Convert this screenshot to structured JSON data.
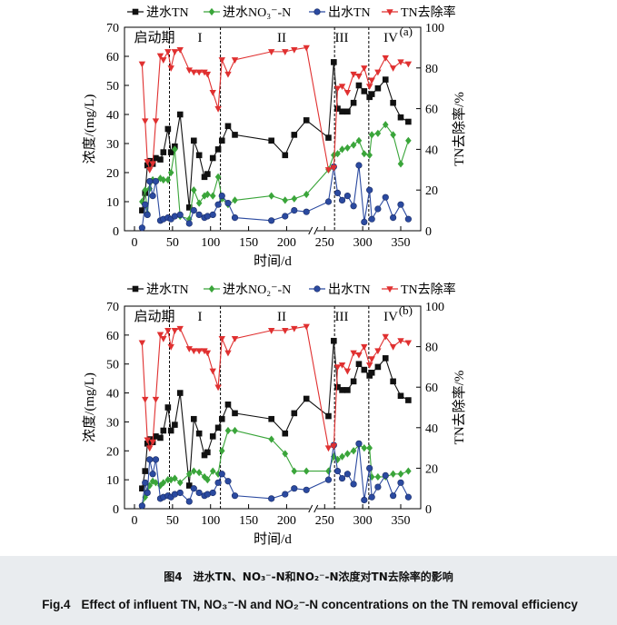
{
  "chart_data": [
    {
      "type": "line",
      "panel_label": "(a)",
      "legend": [
        "进水TN",
        "进水NO₃⁻-N",
        "出水TN",
        "TN去除率"
      ],
      "xlabel": "时间/d",
      "ylabel": "浓度/(mg/L)",
      "ylabel_right": "TN去除率/%",
      "xlim": [
        0,
        370
      ],
      "ylim": [
        0,
        70
      ],
      "ylim_right": [
        0,
        100
      ],
      "x_ticks": [
        "0",
        "50",
        "100",
        "150",
        "200",
        "250",
        "300",
        "350"
      ],
      "y_ticks": [
        "0",
        "10",
        "20",
        "30",
        "40",
        "50",
        "60",
        "70"
      ],
      "y2_ticks": [
        "0",
        "20",
        "40",
        "60",
        "80",
        "100"
      ],
      "phases": [
        "启动期",
        "I",
        "II",
        "III",
        "IV"
      ],
      "phase_boundaries": [
        46,
        113,
        263,
        308
      ],
      "axis_break": 235,
      "series": [
        {
          "name": "进水TN",
          "color": "#111111",
          "marker": "square",
          "axis": "left",
          "x": [
            10,
            14,
            17,
            20,
            24,
            28,
            34,
            38,
            44,
            48,
            53,
            60,
            72,
            78,
            85,
            92,
            96,
            103,
            110,
            115,
            123,
            132,
            180,
            198,
            210,
            226,
            255,
            262,
            267,
            273,
            280,
            288,
            295,
            302,
            309,
            312,
            320,
            330,
            340,
            350,
            360
          ],
          "y": [
            7,
            13,
            22.5,
            24,
            23,
            25,
            24.5,
            27,
            35,
            27,
            29,
            40,
            8,
            31,
            26,
            18.5,
            19.5,
            25,
            28,
            31,
            36,
            33,
            31,
            26,
            33,
            38,
            32,
            58,
            42,
            41,
            41,
            44,
            50,
            48,
            46,
            47,
            49,
            52,
            44,
            39,
            37.5
          ]
        },
        {
          "name": "进水NO₃⁻-N",
          "color": "#3aa53a",
          "marker": "diamond",
          "axis": "left",
          "x": [
            10,
            14,
            17,
            20,
            24,
            28,
            34,
            38,
            44,
            48,
            53,
            60,
            72,
            78,
            85,
            92,
            96,
            103,
            110,
            115,
            123,
            132,
            180,
            198,
            210,
            226,
            255,
            262,
            267,
            273,
            280,
            288,
            295,
            302,
            309,
            312,
            320,
            330,
            340,
            350,
            360
          ],
          "y": [
            10,
            14,
            6,
            14.5,
            17.5,
            17,
            18,
            17.5,
            17.5,
            20,
            28,
            5,
            4,
            14,
            9.5,
            12,
            12.5,
            12,
            18.5,
            11,
            9,
            10.5,
            12,
            10.5,
            11,
            12.5,
            21,
            26,
            26.5,
            28,
            28.5,
            29.5,
            31,
            26.5,
            26,
            33,
            33.5,
            36.5,
            33,
            23,
            31
          ]
        },
        {
          "name": "出水TN",
          "color": "#2b4aa0",
          "marker": "circle",
          "axis": "left",
          "x": [
            10,
            14,
            17,
            20,
            24,
            28,
            34,
            38,
            44,
            48,
            53,
            60,
            72,
            78,
            85,
            92,
            96,
            103,
            110,
            115,
            123,
            132,
            180,
            198,
            210,
            226,
            255,
            262,
            267,
            273,
            280,
            288,
            295,
            302,
            309,
            312,
            320,
            330,
            340,
            350,
            360
          ],
          "y": [
            1,
            9,
            5.5,
            17,
            12,
            17,
            3.5,
            4,
            4.5,
            4,
            5,
            5.5,
            2.5,
            7,
            5.5,
            4.5,
            5,
            5.5,
            9,
            12,
            9.5,
            4.5,
            3.5,
            5,
            7,
            6.5,
            10,
            22,
            13,
            10.5,
            12,
            8.5,
            22.5,
            3,
            14,
            4,
            7.5,
            11.5,
            4.5,
            9,
            4
          ]
        },
        {
          "name": "TN去除率",
          "color": "#e03030",
          "marker": "triangle-down",
          "axis": "right",
          "x": [
            10,
            14,
            17,
            20,
            24,
            28,
            34,
            38,
            44,
            48,
            53,
            60,
            72,
            78,
            85,
            92,
            96,
            103,
            110,
            115,
            123,
            132,
            180,
            198,
            210,
            226,
            255,
            262,
            267,
            273,
            280,
            288,
            295,
            302,
            309,
            312,
            320,
            330,
            340,
            350,
            360
          ],
          "y": [
            82,
            54,
            34,
            30,
            33,
            54,
            86,
            84,
            88,
            80,
            88,
            89,
            79,
            78,
            78,
            78,
            77,
            68,
            60,
            84,
            77,
            84,
            88,
            88,
            89,
            90,
            30,
            31,
            70,
            71,
            68,
            77,
            76,
            80,
            71,
            74,
            78,
            85,
            80,
            83,
            82
          ]
        }
      ]
    },
    {
      "type": "line",
      "panel_label": "(b)",
      "legend": [
        "进水TN",
        "进水NO₂⁻-N",
        "出水TN",
        "TN去除率"
      ],
      "xlabel": "时间/d",
      "ylabel": "浓度/(mg/L)",
      "ylabel_right": "TN去除率/%",
      "xlim": [
        0,
        370
      ],
      "ylim": [
        0,
        70
      ],
      "ylim_right": [
        0,
        100
      ],
      "x_ticks": [
        "0",
        "50",
        "100",
        "150",
        "200",
        "250",
        "300",
        "350"
      ],
      "y_ticks": [
        "0",
        "10",
        "20",
        "30",
        "40",
        "50",
        "60",
        "70"
      ],
      "y2_ticks": [
        "0",
        "20",
        "40",
        "60",
        "80",
        "100"
      ],
      "phases": [
        "启动期",
        "I",
        "II",
        "III",
        "IV"
      ],
      "phase_boundaries": [
        46,
        113,
        263,
        308
      ],
      "axis_break": 235,
      "series": [
        {
          "name": "进水TN",
          "color": "#111111",
          "marker": "square",
          "axis": "left",
          "x": [
            10,
            14,
            17,
            20,
            24,
            28,
            34,
            38,
            44,
            48,
            53,
            60,
            72,
            78,
            85,
            92,
            96,
            103,
            110,
            115,
            123,
            132,
            180,
            198,
            210,
            226,
            255,
            262,
            267,
            273,
            280,
            288,
            295,
            302,
            309,
            312,
            320,
            330,
            340,
            350,
            360
          ],
          "y": [
            7,
            13,
            22.5,
            24,
            23,
            25,
            24.5,
            27,
            35,
            27,
            29,
            40,
            8,
            31,
            26,
            18.5,
            19.5,
            25,
            28,
            31,
            36,
            33,
            31,
            26,
            33,
            38,
            32,
            58,
            42,
            41,
            41,
            44,
            50,
            48,
            46,
            47,
            49,
            52,
            44,
            39,
            37.5
          ]
        },
        {
          "name": "进水NO₂⁻-N",
          "color": "#3aa53a",
          "marker": "diamond",
          "axis": "left",
          "x": [
            10,
            14,
            17,
            20,
            24,
            28,
            34,
            38,
            44,
            48,
            53,
            60,
            72,
            78,
            85,
            92,
            96,
            103,
            110,
            115,
            123,
            132,
            180,
            198,
            210,
            226,
            255,
            262,
            267,
            273,
            280,
            288,
            295,
            302,
            309,
            312,
            320,
            330,
            340,
            350,
            360
          ],
          "y": [
            1,
            4,
            6,
            8,
            9.5,
            9,
            8,
            9,
            10,
            10,
            10.5,
            9,
            12,
            13,
            12.5,
            11,
            10,
            13,
            12,
            20,
            27,
            27,
            24,
            19,
            13,
            13,
            13,
            18,
            17,
            18,
            19,
            20,
            22,
            21,
            21,
            11,
            11,
            11,
            12,
            12,
            13
          ]
        },
        {
          "name": "出水TN",
          "color": "#2b4aa0",
          "marker": "circle",
          "axis": "left",
          "x": [
            10,
            14,
            17,
            20,
            24,
            28,
            34,
            38,
            44,
            48,
            53,
            60,
            72,
            78,
            85,
            92,
            96,
            103,
            110,
            115,
            123,
            132,
            180,
            198,
            210,
            226,
            255,
            262,
            267,
            273,
            280,
            288,
            295,
            302,
            309,
            312,
            320,
            330,
            340,
            350,
            360
          ],
          "y": [
            1,
            9,
            5.5,
            17,
            12,
            17,
            3.5,
            4,
            4.5,
            4,
            5,
            5.5,
            2.5,
            7,
            5.5,
            4.5,
            5,
            5.5,
            9,
            12,
            9.5,
            4.5,
            3.5,
            5,
            7,
            6.5,
            10,
            22,
            13,
            10.5,
            12,
            8.5,
            22.5,
            3,
            14,
            4,
            7.5,
            11.5,
            4.5,
            9,
            4
          ]
        },
        {
          "name": "TN去除率",
          "color": "#e03030",
          "marker": "triangle-down",
          "axis": "right",
          "x": [
            10,
            14,
            17,
            20,
            24,
            28,
            34,
            38,
            44,
            48,
            53,
            60,
            72,
            78,
            85,
            92,
            96,
            103,
            110,
            115,
            123,
            132,
            180,
            198,
            210,
            226,
            255,
            262,
            267,
            273,
            280,
            288,
            295,
            302,
            309,
            312,
            320,
            330,
            340,
            350,
            360
          ],
          "y": [
            82,
            54,
            34,
            30,
            33,
            54,
            86,
            84,
            88,
            80,
            88,
            89,
            79,
            78,
            78,
            78,
            77,
            68,
            60,
            84,
            77,
            84,
            88,
            88,
            89,
            90,
            30,
            31,
            70,
            71,
            68,
            77,
            76,
            80,
            71,
            74,
            78,
            85,
            80,
            83,
            82
          ]
        }
      ]
    }
  ],
  "caption": {
    "cn_label": "图4",
    "cn_text": "进水TN、NO₃⁻-N和NO₂⁻-N浓度对TN去除率的影响",
    "en_label": "Fig.4",
    "en_text": "Effect of influent TN, NO₃⁻-N and NO₂⁻-N concentrations on the TN removal efficiency"
  }
}
